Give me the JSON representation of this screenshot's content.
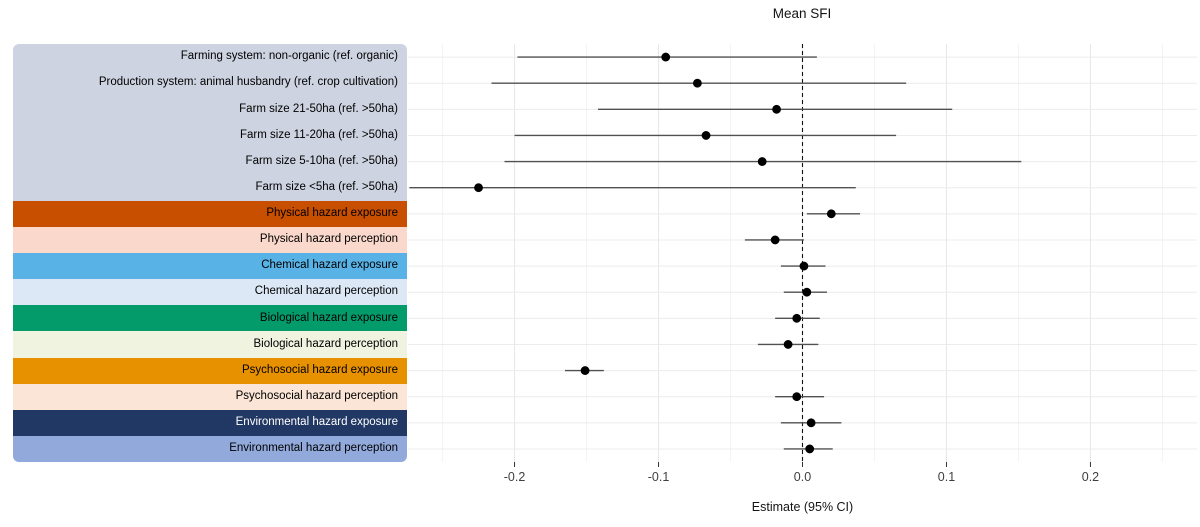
{
  "chart_data": {
    "type": "scatter",
    "subtype": "forest-plot-with-ci",
    "title": "Mean SFI",
    "xlabel": "Estimate (95% CI)",
    "xlim": [
      -0.274,
      0.274
    ],
    "xticks": [
      {
        "value": -0.2,
        "label": "-0.2"
      },
      {
        "value": -0.1,
        "label": "-0.1"
      },
      {
        "value": 0.0,
        "label": "0.0"
      },
      {
        "value": 0.1,
        "label": "0.1"
      },
      {
        "value": 0.2,
        "label": "0.2"
      }
    ],
    "minor_ticks": [
      -0.25,
      -0.15,
      -0.05,
      0.05,
      0.15,
      0.25
    ],
    "zero_line": 0,
    "grid": "on",
    "style": {
      "ci_line_color": "#515151",
      "point_color": "#000000",
      "zero_line_color": "#111111",
      "major_grid_color": "#e7e7e7",
      "minor_grid_color": "#f4f4f4",
      "row_grid_color": "#ececec",
      "tick_color": "#333333",
      "tick_label_color": "#404040",
      "axis_title_color": "#141414"
    },
    "rows": [
      {
        "label": "Farming system: non-organic (ref. organic)",
        "estimate": -0.095,
        "ci_low": -0.198,
        "ci_high": 0.01,
        "band_color": "#CDD3E0",
        "label_color": "#000000"
      },
      {
        "label": "Production system: animal husbandry (ref. crop cultivation)",
        "estimate": -0.073,
        "ci_low": -0.216,
        "ci_high": 0.072,
        "band_color": "#CDD3E0",
        "label_color": "#000000"
      },
      {
        "label": "Farm size 21-50ha (ref. >50ha)",
        "estimate": -0.018,
        "ci_low": -0.142,
        "ci_high": 0.104,
        "band_color": "#CDD3E0",
        "label_color": "#000000"
      },
      {
        "label": "Farm size 11-20ha (ref. >50ha)",
        "estimate": -0.067,
        "ci_low": -0.2,
        "ci_high": 0.065,
        "band_color": "#CDD3E0",
        "label_color": "#000000"
      },
      {
        "label": "Farm size 5-10ha (ref. >50ha)",
        "estimate": -0.028,
        "ci_low": -0.207,
        "ci_high": 0.152,
        "band_color": "#CDD3E0",
        "label_color": "#000000"
      },
      {
        "label": "Farm size <5ha (ref. >50ha)",
        "estimate": -0.225,
        "ci_low": -0.273,
        "ci_high": 0.037,
        "band_color": "#CDD3E0",
        "label_color": "#000000"
      },
      {
        "label": "Physical hazard exposure",
        "estimate": 0.02,
        "ci_low": 0.003,
        "ci_high": 0.04,
        "band_color": "#C84E00",
        "label_color": "#000000"
      },
      {
        "label": "Physical hazard perception",
        "estimate": -0.019,
        "ci_low": -0.04,
        "ci_high": 0.001,
        "band_color": "#FAD9CC",
        "label_color": "#000000"
      },
      {
        "label": "Chemical hazard exposure",
        "estimate": 0.001,
        "ci_low": -0.015,
        "ci_high": 0.016,
        "band_color": "#58B2E6",
        "label_color": "#000000"
      },
      {
        "label": "Chemical hazard perception",
        "estimate": 0.003,
        "ci_low": -0.013,
        "ci_high": 0.017,
        "band_color": "#DCE8F6",
        "label_color": "#000000"
      },
      {
        "label": "Biological hazard exposure",
        "estimate": -0.004,
        "ci_low": -0.019,
        "ci_high": 0.012,
        "band_color": "#049B6B",
        "label_color": "#000000"
      },
      {
        "label": "Biological hazard perception",
        "estimate": -0.01,
        "ci_low": -0.031,
        "ci_high": 0.011,
        "band_color": "#EFF3DF",
        "label_color": "#000000"
      },
      {
        "label": "Psychosocial hazard exposure",
        "estimate": -0.151,
        "ci_low": -0.165,
        "ci_high": -0.138,
        "band_color": "#E89100",
        "label_color": "#000000"
      },
      {
        "label": "Psychosocial hazard perception",
        "estimate": -0.004,
        "ci_low": -0.019,
        "ci_high": 0.015,
        "band_color": "#FAE5D6",
        "label_color": "#000000"
      },
      {
        "label": "Environmental hazard exposure",
        "estimate": 0.006,
        "ci_low": -0.015,
        "ci_high": 0.027,
        "band_color": "#223864",
        "label_color": "#FFFFFF"
      },
      {
        "label": "Environmental hazard perception",
        "estimate": 0.005,
        "ci_low": -0.013,
        "ci_high": 0.021,
        "band_color": "#92A9DC",
        "label_color": "#000000"
      }
    ]
  }
}
